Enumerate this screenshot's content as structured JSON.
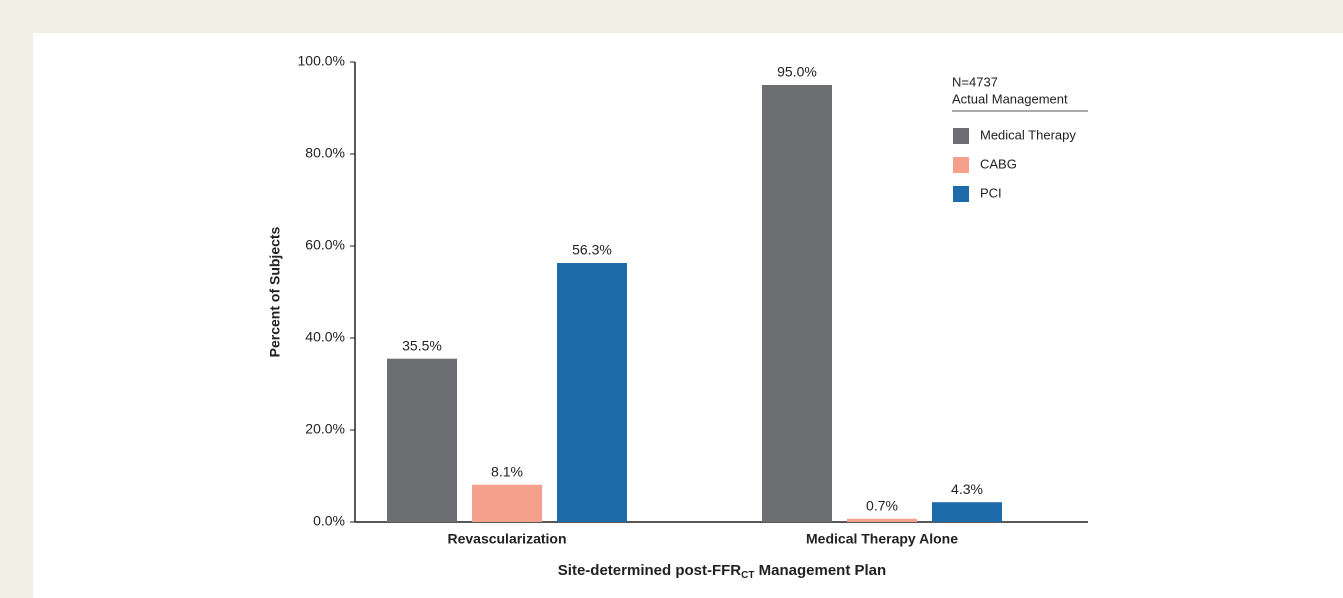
{
  "chart_data": {
    "type": "bar",
    "y_label": "Percent of Subjects",
    "x_label": {
      "text": "Site-determined post-FFR",
      "sub": "CT",
      "after": " Management Plan"
    },
    "legend_title": [
      "N=4737",
      "Actual Management"
    ],
    "categories": [
      "Revascularization",
      "Medical Therapy Alone"
    ],
    "series": [
      {
        "name": "Medical Therapy",
        "color": "#6d6e71",
        "values": [
          35.5,
          95.0
        ],
        "value_labels": [
          "35.5%",
          "95.0%"
        ]
      },
      {
        "name": "CABG",
        "color": "#f4a08a",
        "values": [
          8.1,
          0.7
        ],
        "value_labels": [
          "8.1%",
          "0.7%"
        ]
      },
      {
        "name": "PCI",
        "color": "#1f6aa9",
        "values": [
          56.3,
          4.3
        ],
        "value_labels": [
          "56.3%",
          "4.3%"
        ]
      }
    ],
    "ylim": [
      0,
      100
    ],
    "yticks": [
      {
        "value": 0,
        "label": "0.0%"
      },
      {
        "value": 20,
        "label": "20.0%"
      },
      {
        "value": 40,
        "label": "40.0%"
      },
      {
        "value": 60,
        "label": "60.0%"
      },
      {
        "value": 80,
        "label": "80.0%"
      },
      {
        "value": 100,
        "label": "100.0%"
      }
    ],
    "grid": false
  }
}
